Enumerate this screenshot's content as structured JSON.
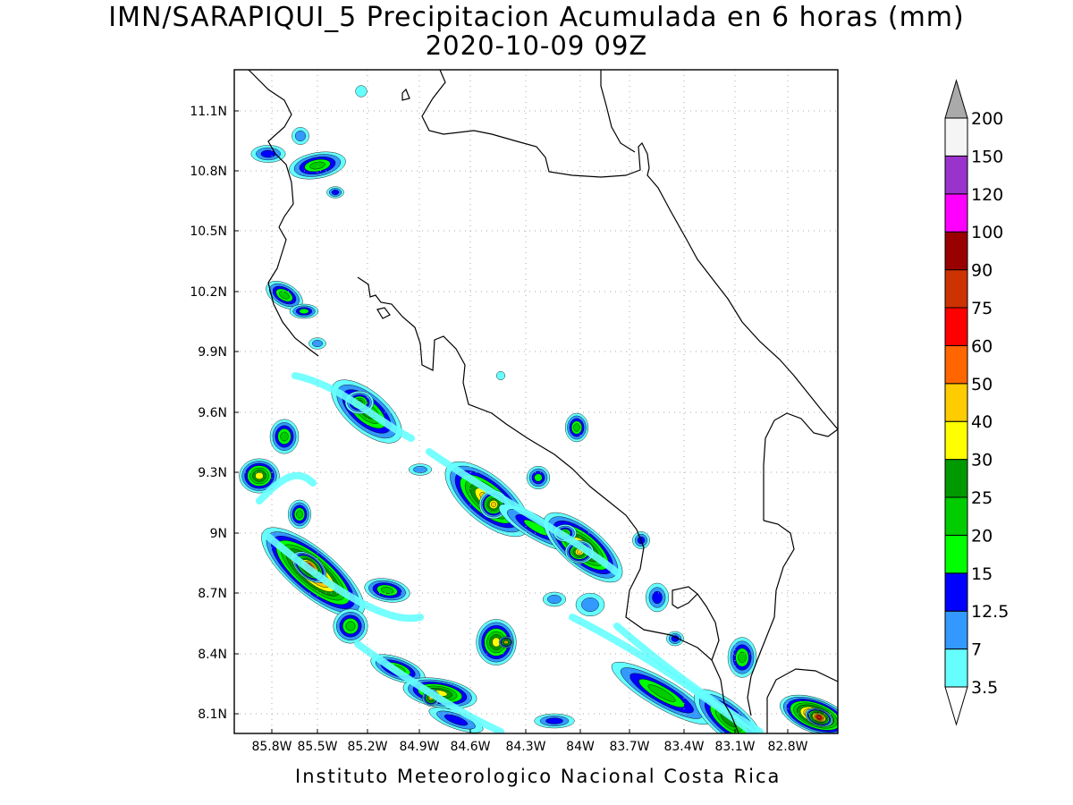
{
  "title": "IMN/SARAPIQUI_5 Precipitacion Acumulada en 6 horas (mm)",
  "subtitle": "2020-10-09 09Z",
  "footer": "Instituto Meteorologico Nacional Costa Rica",
  "map": {
    "lat_ticks": [
      "11.1N",
      "10.8N",
      "10.5N",
      "10.2N",
      "9.9N",
      "9.6N",
      "9.3N",
      "9N",
      "8.7N",
      "8.4N",
      "8.1N"
    ],
    "lon_ticks": [
      "85.8W",
      "85.5W",
      "85.2W",
      "84.9W",
      "84.6W",
      "84.3W",
      "84W",
      "83.7W",
      "83.4W",
      "83.1W",
      "82.8W"
    ],
    "grid": "dotted",
    "variable": "6-hour accumulated precipitation"
  },
  "colorbar": {
    "levels": [
      "3.5",
      "7",
      "12.5",
      "15",
      "20",
      "25",
      "30",
      "40",
      "50",
      "60",
      "75",
      "90",
      "100",
      "120",
      "150",
      "200"
    ],
    "colors": [
      "#ffffff",
      "#66ffff",
      "#3399ff",
      "#0000ff",
      "#00ff00",
      "#00cc00",
      "#009900",
      "#ffff00",
      "#ffcc00",
      "#ff6600",
      "#ff0000",
      "#cc3300",
      "#990000",
      "#ff00ff",
      "#9933cc",
      "#f5f5f5",
      "#aaaaaa"
    ]
  }
}
